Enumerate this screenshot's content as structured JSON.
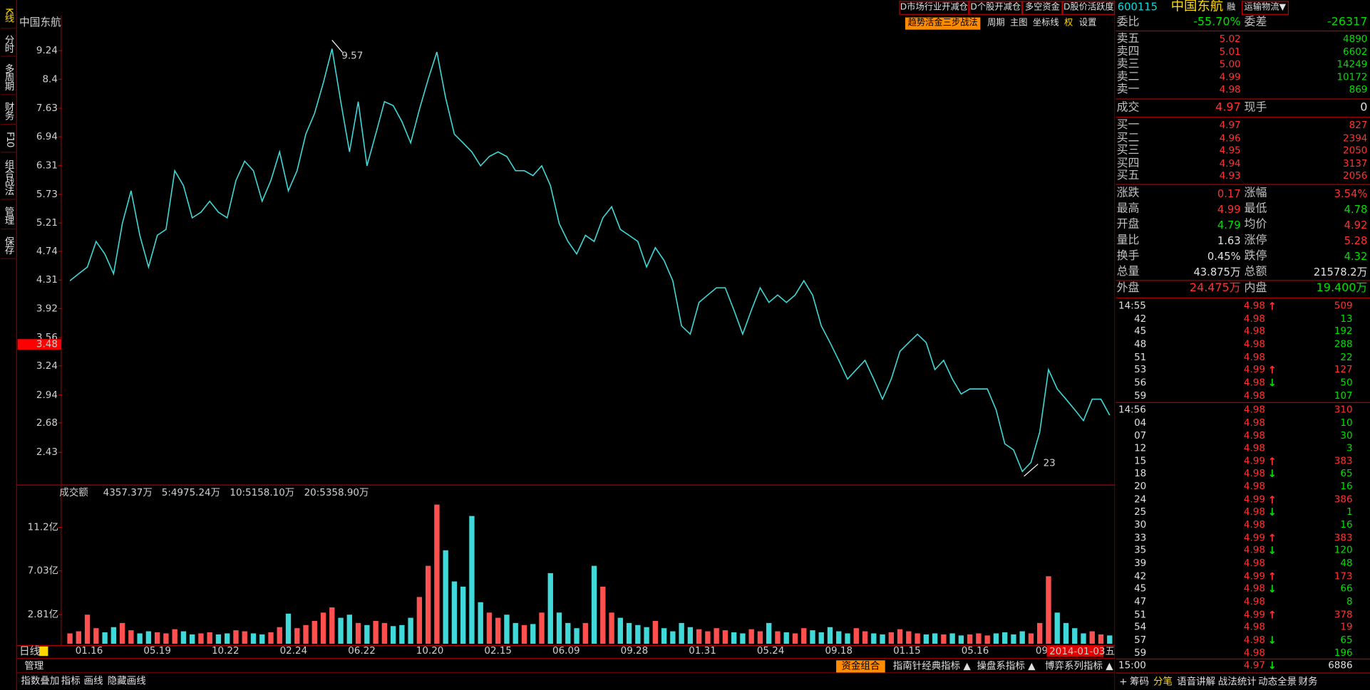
{
  "header": {
    "code": "600115",
    "name": "中国东航",
    "tag": "融",
    "industry": "运输物流▼"
  },
  "top_buttons": [
    "D市场行业开减仓",
    "D个股开减仓",
    "多空资金",
    "D股价活跃度"
  ],
  "side_tabs": [
    "K线",
    "分时",
    "多周期",
    "财务",
    "F10",
    "组合战法",
    "管理",
    "保存"
  ],
  "toolbar": [
    "趋势活金三步战法",
    "周期",
    "主图",
    "坐标线",
    "权",
    "设置"
  ],
  "chart_data": [
    {
      "type": "line",
      "title": "中国东航",
      "color": "#40d8d8",
      "log_scale": true,
      "ylim": [
        2.18,
        10.38
      ],
      "yticks": [
        9.24,
        8.4,
        7.63,
        6.94,
        6.31,
        5.73,
        5.21,
        4.74,
        4.31,
        3.92,
        3.56,
        3.24,
        2.94,
        2.68,
        2.43
      ],
      "current_price": 3.48,
      "annotations": [
        "9.57",
        "23"
      ],
      "x_labels": [
        "01.16",
        "05.19",
        "10.22",
        "02.24",
        "06.22",
        "10.20",
        "02.15",
        "06.09",
        "09.28",
        "01.31",
        "05.24",
        "09.18",
        "01.15",
        "05.16",
        "09."
      ],
      "values": [
        4.3,
        4.4,
        4.5,
        4.9,
        4.7,
        4.4,
        5.2,
        5.8,
        5.0,
        4.5,
        5.0,
        5.1,
        6.2,
        5.9,
        5.3,
        5.4,
        5.6,
        5.4,
        5.3,
        6.0,
        6.4,
        6.2,
        5.6,
        6.0,
        6.6,
        5.8,
        6.2,
        7.0,
        7.5,
        8.3,
        9.3,
        7.8,
        6.6,
        7.8,
        6.3,
        7.0,
        7.8,
        7.7,
        7.3,
        6.8,
        7.6,
        8.4,
        9.2,
        7.9,
        7.0,
        6.8,
        6.6,
        6.3,
        6.5,
        6.6,
        6.5,
        6.2,
        6.2,
        6.1,
        6.3,
        5.9,
        5.2,
        4.9,
        4.7,
        5.0,
        4.9,
        5.3,
        5.5,
        5.1,
        5.0,
        4.9,
        4.5,
        4.8,
        4.6,
        4.3,
        3.7,
        3.6,
        4.0,
        4.1,
        4.2,
        4.2,
        3.9,
        3.6,
        3.9,
        4.2,
        4.0,
        4.1,
        4.0,
        4.1,
        4.3,
        4.1,
        3.7,
        3.5,
        3.3,
        3.1,
        3.2,
        3.3,
        3.1,
        2.9,
        3.1,
        3.4,
        3.5,
        3.6,
        3.5,
        3.2,
        3.3,
        3.1,
        2.95,
        3.0,
        3.0,
        3.0,
        2.8,
        2.5,
        2.45,
        2.28,
        2.35,
        2.6,
        3.2,
        3.0,
        2.9,
        2.8,
        2.7,
        2.9,
        2.9,
        2.75
      ],
      "period": "日线",
      "date": "2014-01-03",
      "weekday": "五"
    },
    {
      "type": "bar",
      "title": "成交额",
      "legend": [
        "4357.37万",
        "5:4975.24万",
        "10:5158.10万",
        "20:5358.90万"
      ],
      "color": "#ff5050",
      "down_color": "#40d8d8",
      "ylim": [
        0,
        14.95
      ],
      "yticks": [
        {
          "value": 2.81,
          "label": "2.81亿"
        },
        {
          "value": 7.03,
          "label": "7.03亿"
        },
        {
          "value": 11.2,
          "label": "11.2亿"
        }
      ],
      "values": [
        1.0,
        1.2,
        2.8,
        1.5,
        1.1,
        1.6,
        2.0,
        1.3,
        1.0,
        1.2,
        1.1,
        1.0,
        1.4,
        1.2,
        0.9,
        1.0,
        1.1,
        0.9,
        1.0,
        1.3,
        1.2,
        1.0,
        0.9,
        1.1,
        1.6,
        2.9,
        1.5,
        1.8,
        2.2,
        3.0,
        3.5,
        2.5,
        2.8,
        2.0,
        1.8,
        2.2,
        2.0,
        1.7,
        1.8,
        2.5,
        4.5,
        7.5,
        13.4,
        9.0,
        6.0,
        5.5,
        12.3,
        4.0,
        3.0,
        2.5,
        2.8,
        2.0,
        1.8,
        1.9,
        3.0,
        6.8,
        3.0,
        2.0,
        1.5,
        2.0,
        7.5,
        5.5,
        3.0,
        2.5,
        2.0,
        1.8,
        1.6,
        2.2,
        1.5,
        1.2,
        2.0,
        1.6,
        1.4,
        1.2,
        1.5,
        1.3,
        1.1,
        1.0,
        1.4,
        1.2,
        2.0,
        1.2,
        1.1,
        1.0,
        1.5,
        1.3,
        1.1,
        1.6,
        1.2,
        1.0,
        1.5,
        1.2,
        1.0,
        0.9,
        1.1,
        1.4,
        1.2,
        1.0,
        0.9,
        1.0,
        0.9,
        1.0,
        0.8,
        0.9,
        1.0,
        0.8,
        1.0,
        1.1,
        0.9,
        1.2,
        1.0,
        2.0,
        6.5,
        3.0,
        2.0,
        1.5,
        1.0,
        1.2,
        0.9,
        0.8
      ]
    }
  ],
  "bottom_bar": {
    "left": "管理",
    "tabs": [
      "资金组合",
      "指南针经典指标 ▲",
      "操盘系指标 ▲",
      "博弈系列指标 ▲"
    ],
    "tools": [
      "指数叠加",
      "指标",
      "画线",
      "隐藏画线"
    ]
  },
  "book": {
    "ratio": [
      "委比",
      "-55.70%",
      "委差",
      "-26317"
    ],
    "sells": [
      [
        "卖五",
        "5.02",
        "4890"
      ],
      [
        "卖四",
        "5.01",
        "6602"
      ],
      [
        "卖三",
        "5.00",
        "14249"
      ],
      [
        "卖二",
        "4.99",
        "10172"
      ],
      [
        "卖一",
        "4.98",
        "869"
      ]
    ],
    "trade": [
      "成交",
      "4.97",
      "现手",
      "0"
    ],
    "buys": [
      [
        "买一",
        "4.97",
        "827"
      ],
      [
        "买二",
        "4.96",
        "2394"
      ],
      [
        "买三",
        "4.95",
        "2050"
      ],
      [
        "买四",
        "4.94",
        "3137"
      ],
      [
        "买五",
        "4.93",
        "2056"
      ]
    ],
    "stats": [
      {
        "l1": "涨跌",
        "v1": "0.17",
        "c1": "#ff3232",
        "l2": "涨幅",
        "v2": "3.54%",
        "c2": "#ff3232"
      },
      {
        "l1": "最高",
        "v1": "4.99",
        "c1": "#ff3232",
        "l2": "最低",
        "v2": "4.78",
        "c2": "#00e000"
      },
      {
        "l1": "开盘",
        "v1": "4.79",
        "c1": "#00e000",
        "l2": "均价",
        "v2": "4.92",
        "c2": "#ff3232"
      },
      {
        "l1": "量比",
        "v1": "1.63",
        "c1": "#e0e0e0",
        "l2": "涨停",
        "v2": "5.28",
        "c2": "#ff3232"
      },
      {
        "l1": "换手",
        "v1": "0.45%",
        "c1": "#e0e0e0",
        "l2": "跌停",
        "v2": "4.32",
        "c2": "#00e000"
      },
      {
        "l1": "总量",
        "v1": "43.875万",
        "c1": "#e0e0e0",
        "l2": "总额",
        "v2": "21578.2万",
        "c2": "#e0e0e0"
      }
    ],
    "outer": [
      "外盘",
      "24.475万",
      "内盘",
      "19.400万"
    ]
  },
  "ticks": [
    {
      "time": "14:55",
      "price": "4.98",
      "arrow": "↑",
      "vol": "509",
      "vol_color": "#ff3232"
    },
    {
      "time": "42",
      "price": "4.98",
      "vol": "13",
      "vol_color": "#00e000"
    },
    {
      "time": "45",
      "price": "4.98",
      "vol": "192",
      "vol_color": "#00e000"
    },
    {
      "time": "48",
      "price": "4.98",
      "vol": "288",
      "vol_color": "#00e000"
    },
    {
      "time": "51",
      "price": "4.98",
      "vol": "22",
      "vol_color": "#00e000"
    },
    {
      "time": "53",
      "price": "4.99",
      "arrow": "↑",
      "vol": "127",
      "vol_color": "#ff3232"
    },
    {
      "time": "56",
      "price": "4.98",
      "arrow": "↓",
      "vol": "50",
      "vol_color": "#00e000"
    },
    {
      "time": "59",
      "price": "4.98",
      "vol": "107",
      "vol_color": "#00e000"
    },
    {
      "time": "14:56",
      "price": "4.98",
      "vol": "310",
      "vol_color": "#ff3232"
    },
    {
      "time": "04",
      "price": "4.98",
      "vol": "10",
      "vol_color": "#00e000"
    },
    {
      "time": "07",
      "price": "4.98",
      "vol": "30",
      "vol_color": "#00e000"
    },
    {
      "time": "12",
      "price": "4.98",
      "vol": "3",
      "vol_color": "#00e000"
    },
    {
      "time": "15",
      "price": "4.99",
      "arrow": "↑",
      "vol": "383",
      "vol_color": "#ff3232"
    },
    {
      "time": "18",
      "price": "4.98",
      "arrow": "↓",
      "vol": "65",
      "vol_color": "#00e000"
    },
    {
      "time": "20",
      "price": "4.98",
      "vol": "16",
      "vol_color": "#00e000"
    },
    {
      "time": "24",
      "price": "4.99",
      "arrow": "↑",
      "vol": "386",
      "vol_color": "#ff3232"
    },
    {
      "time": "25",
      "price": "4.98",
      "arrow": "↓",
      "vol": "1",
      "vol_color": "#00e000"
    },
    {
      "time": "30",
      "price": "4.98",
      "vol": "16",
      "vol_color": "#00e000"
    },
    {
      "time": "33",
      "price": "4.99",
      "arrow": "↑",
      "vol": "383",
      "vol_color": "#ff3232"
    },
    {
      "time": "35",
      "price": "4.98",
      "arrow": "↓",
      "vol": "120",
      "vol_color": "#00e000"
    },
    {
      "time": "39",
      "price": "4.98",
      "vol": "48",
      "vol_color": "#00e000"
    },
    {
      "time": "42",
      "price": "4.99",
      "arrow": "↑",
      "vol": "173",
      "vol_color": "#ff3232"
    },
    {
      "time": "45",
      "price": "4.98",
      "arrow": "↓",
      "vol": "66",
      "vol_color": "#00e000"
    },
    {
      "time": "47",
      "price": "4.98",
      "vol": "8",
      "vol_color": "#00e000"
    },
    {
      "time": "51",
      "price": "4.99",
      "arrow": "↑",
      "vol": "378",
      "vol_color": "#ff3232"
    },
    {
      "time": "54",
      "price": "4.98",
      "vol": "19",
      "vol_color": "#ff3232"
    },
    {
      "time": "57",
      "price": "4.98",
      "arrow": "↓",
      "vol": "65",
      "vol_color": "#00e000"
    },
    {
      "time": "59",
      "price": "4.98",
      "vol": "196",
      "vol_color": "#00e000"
    },
    {
      "time": "15:00",
      "price": "4.97",
      "arrow": "↓",
      "vol": "6886",
      "vol_color": "#e0e0e0"
    }
  ],
  "panel_tabs": [
    "+",
    "筹码",
    "分笔",
    "语音讲解",
    "战法统计",
    "动态全景",
    "财务"
  ]
}
